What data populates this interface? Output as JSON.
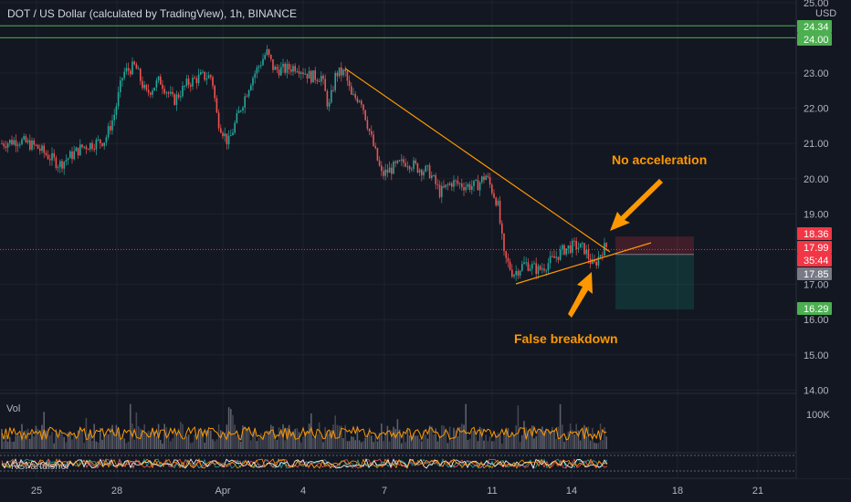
{
  "header": {
    "title": "DOT / US Dollar (calculated by TradingView), 1h, BINANCE"
  },
  "chart_data": {
    "type": "candlestick",
    "currency_label": "USD",
    "y_ticks": [
      "25.00",
      "23.00",
      "22.00",
      "21.00",
      "20.00",
      "19.00",
      "17.00",
      "16.00",
      "15.00",
      "14.00"
    ],
    "y_tick_values": [
      25,
      23,
      22,
      21,
      20,
      19,
      17,
      16,
      15,
      14
    ],
    "ylim": [
      14,
      25
    ],
    "x_ticks": [
      "25",
      "28",
      "Apr",
      "4",
      "7",
      "11",
      "14",
      "18",
      "21"
    ],
    "price_tags": [
      {
        "text": "24.34",
        "value": 24.34,
        "color": "#4caf50"
      },
      {
        "text": "24.00",
        "value": 24.0,
        "color": "#4caf50"
      },
      {
        "text": "18.36",
        "value": 18.36,
        "color": "#f23645"
      },
      {
        "text": "17.99",
        "value": 17.99,
        "color": "#f23645"
      },
      {
        "text": "35:44",
        "value": 17.8,
        "color": "#f23645"
      },
      {
        "text": "17.85",
        "value": 17.85,
        "color": "#787b86"
      },
      {
        "text": "16.29",
        "value": 16.29,
        "color": "#4caf50"
      }
    ],
    "horizontal_levels": [
      24.34,
      24.0
    ],
    "current_price": 17.99,
    "position": {
      "entry": 17.85,
      "stop": 18.36,
      "target": 16.29
    },
    "trendlines": [
      {
        "from_date": "Apr 5",
        "from_value": 23.1,
        "to_date": "Apr 15",
        "to_value": 17.9
      },
      {
        "from_date": "Apr 12",
        "from_value": 16.95,
        "to_date": "Apr 16",
        "to_value": 18.2
      }
    ],
    "annotations": [
      {
        "text": "No acceleration"
      },
      {
        "text": "False breakdown"
      }
    ],
    "volume_label": "Vol",
    "volume_tick": "100K",
    "rsi_label": "RSI artdishel"
  },
  "colors": {
    "background": "#131722",
    "up": "#26a69a",
    "down": "#ef5350",
    "trend": "#ff9800",
    "grid": "#1e222d"
  }
}
